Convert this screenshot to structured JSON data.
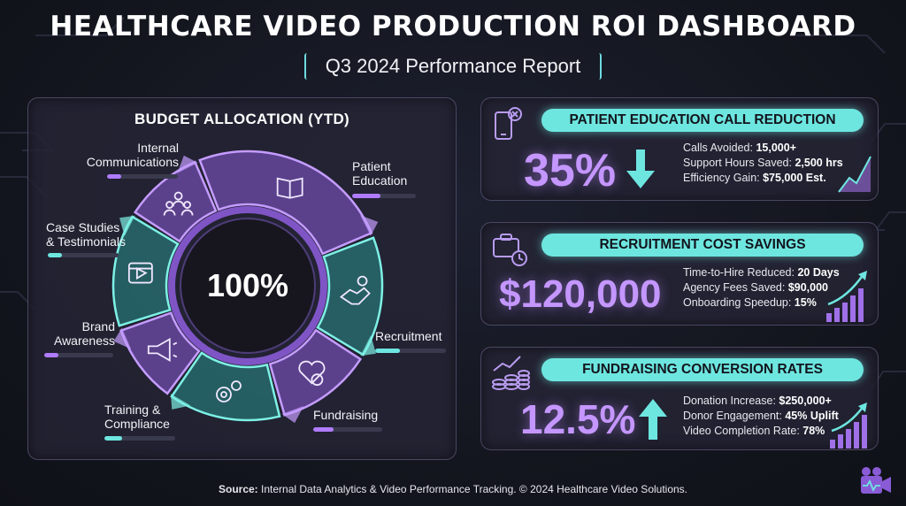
{
  "header": {
    "title": "HEALTHCARE VIDEO PRODUCTION ROI DASHBOARD",
    "subtitle": "Q3 2024 Performance Report"
  },
  "budget": {
    "title": "BUDGET ALLOCATION (YTD)",
    "center_label": "100%"
  },
  "chart_data": {
    "type": "pie",
    "title": "BUDGET ALLOCATION (YTD)",
    "center_label": "100%",
    "categories": [
      "Patient Education",
      "Recruitment",
      "Fundraising",
      "Training & Compliance",
      "Brand Awareness",
      "Case Studies & Testimonials",
      "Internal Communications"
    ],
    "values": [
      25,
      15,
      12,
      14,
      10,
      14,
      10
    ],
    "bar_levels": [
      0.45,
      0.35,
      0.3,
      0.25,
      0.2,
      0.2,
      0.2
    ],
    "segment_colors": [
      "#8a5bd6",
      "#2aa89f",
      "#8a5bd6",
      "#2aa89f",
      "#8a5bd6",
      "#2aa89f",
      "#8a5bd6"
    ],
    "segment_icons": [
      "book-icon",
      "handshake-icon",
      "heart-dollar-icon",
      "gears-icon",
      "megaphone-icon",
      "video-play-icon",
      "team-icon"
    ],
    "labels": {
      "patient_education": [
        "Patient",
        "Education"
      ],
      "recruitment": [
        "Recruitment"
      ],
      "fundraising": [
        "Fundraising"
      ],
      "training": [
        "Training &",
        "Compliance"
      ],
      "brand": [
        "Brand",
        "Awareness"
      ],
      "case_studies": [
        "Case Studies",
        "& Testimonials"
      ],
      "internal": [
        "Internal",
        "Communications"
      ]
    }
  },
  "kpis": [
    {
      "title": "PATIENT EDUCATION CALL REDUCTION",
      "value": "35%",
      "trend": "down",
      "icon": "phone-off-icon",
      "lines": [
        {
          "label": "Calls Avoided: ",
          "value": "15,000+"
        },
        {
          "label": "Support Hours Saved: ",
          "value": "2,500 hrs"
        },
        {
          "label": "Efficiency Gain: ",
          "value": "$75,000 Est."
        }
      ]
    },
    {
      "title": "RECRUITMENT COST SAVINGS",
      "value": "$120,000",
      "trend": "up",
      "icon": "briefcase-clock-icon",
      "lines": [
        {
          "label": "Time-to-Hire Reduced: ",
          "value": "20 Days"
        },
        {
          "label": "Agency Fees Saved: ",
          "value": "$90,000"
        },
        {
          "label": "Onboarding Speedup: ",
          "value": "15%"
        }
      ]
    },
    {
      "title": "FUNDRAISING CONVERSION RATES",
      "value": "12.5%",
      "trend": "up",
      "icon": "coins-growth-icon",
      "lines": [
        {
          "label": "Donation Increase: ",
          "value": "$250,000+"
        },
        {
          "label": "Donor Engagement: ",
          "value": "45% Uplift"
        },
        {
          "label": "Video Completion Rate: ",
          "value": "78%"
        }
      ]
    }
  ],
  "footer": {
    "source_label": "Source:",
    "source_text": " Internal Data Analytics & Video Performance Tracking. © 2024 Healthcare Video Solutions."
  },
  "colors": {
    "purple": "#8a5bd6",
    "teal": "#2aa89f",
    "kpi_value": "#c496ff",
    "header_pill": "#6ee6e0"
  }
}
